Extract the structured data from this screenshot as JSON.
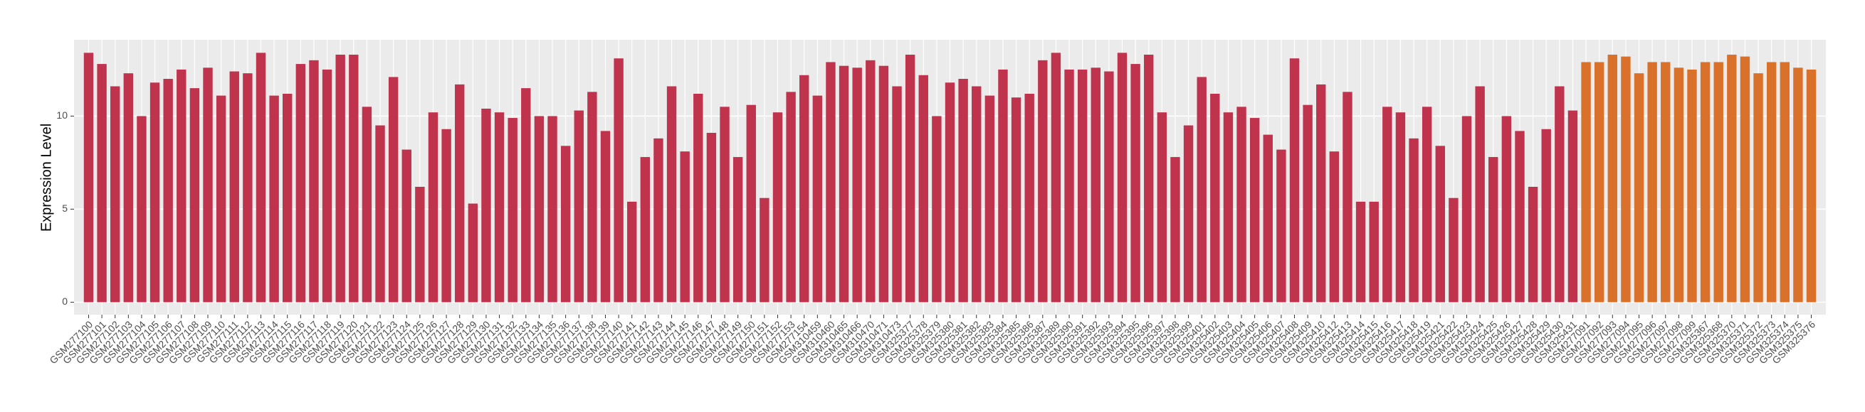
{
  "chart_data": {
    "type": "bar",
    "y_label": "Expression Level",
    "categories": [
      "GSM277100",
      "GSM277101",
      "GSM277102",
      "GSM277103",
      "GSM277104",
      "GSM277105",
      "GSM277106",
      "GSM277107",
      "GSM277108",
      "GSM277109",
      "GSM277110",
      "GSM277111",
      "GSM277112",
      "GSM277113",
      "GSM277114",
      "GSM277115",
      "GSM277116",
      "GSM277117",
      "GSM277118",
      "GSM277119",
      "GSM277120",
      "GSM277121",
      "GSM277122",
      "GSM277123",
      "GSM277124",
      "GSM277125",
      "GSM277126",
      "GSM277127",
      "GSM277128",
      "GSM277129",
      "GSM277130",
      "GSM277131",
      "GSM277132",
      "GSM277133",
      "GSM277134",
      "GSM277135",
      "GSM277136",
      "GSM277137",
      "GSM277138",
      "GSM277139",
      "GSM277140",
      "GSM277141",
      "GSM277142",
      "GSM277143",
      "GSM277144",
      "GSM277145",
      "GSM277146",
      "GSM277147",
      "GSM277148",
      "GSM277149",
      "GSM277150",
      "GSM277151",
      "GSM277152",
      "GSM277153",
      "GSM277154",
      "GSM310459",
      "GSM310460",
      "GSM310465",
      "GSM310466",
      "GSM310470",
      "GSM310471",
      "GSM310473",
      "GSM325377",
      "GSM325378",
      "GSM325379",
      "GSM325380",
      "GSM325381",
      "GSM325382",
      "GSM325383",
      "GSM325384",
      "GSM325385",
      "GSM325386",
      "GSM325387",
      "GSM325389",
      "GSM325390",
      "GSM325391",
      "GSM325392",
      "GSM325393",
      "GSM325394",
      "GSM325395",
      "GSM325396",
      "GSM325397",
      "GSM325398",
      "GSM325399",
      "GSM325401",
      "GSM325402",
      "GSM325403",
      "GSM325404",
      "GSM325405",
      "GSM325406",
      "GSM325407",
      "GSM325408",
      "GSM325409",
      "GSM325410",
      "GSM325412",
      "GSM325413",
      "GSM325414",
      "GSM325415",
      "GSM325416",
      "GSM325417",
      "GSM325418",
      "GSM325419",
      "GSM325421",
      "GSM325422",
      "GSM325423",
      "GSM325424",
      "GSM325425",
      "GSM325426",
      "GSM325427",
      "GSM325428",
      "GSM325429",
      "GSM325430",
      "GSM325431",
      "GSM277091",
      "GSM277092",
      "GSM277093",
      "GSM277094",
      "GSM277095",
      "GSM277096",
      "GSM277097",
      "GSM277098",
      "GSM277099",
      "GSM325367",
      "GSM325368",
      "GSM325370",
      "GSM325371",
      "GSM325372",
      "GSM325373",
      "GSM325374",
      "GSM325375",
      "GSM325376"
    ],
    "series": [
      {
        "color": "#c0334d",
        "values": [
          13.4,
          12.8,
          11.6,
          12.3,
          10.0,
          11.8,
          12.0,
          12.5,
          11.5,
          12.6,
          11.1,
          12.4,
          12.3,
          13.4,
          11.1,
          11.2,
          12.8,
          13.0,
          12.5,
          13.3,
          13.3,
          10.5,
          9.5,
          12.1,
          8.2,
          6.2,
          10.2,
          9.3,
          11.7,
          5.3,
          10.4,
          10.2,
          9.9,
          11.5,
          10.0,
          10.0,
          8.4,
          10.3,
          11.3,
          9.2,
          13.1,
          5.4,
          7.8,
          8.8,
          11.6,
          8.1,
          11.2,
          9.1,
          10.5,
          7.8,
          10.6,
          5.6,
          10.2,
          11.3,
          12.2,
          11.1,
          12.9,
          12.7,
          12.6,
          13.0,
          12.7,
          11.6,
          13.3,
          12.2,
          10.0,
          11.8,
          12.0,
          11.6,
          11.1,
          12.5,
          11.0,
          11.2,
          13.0,
          13.4,
          12.5,
          12.5,
          12.6,
          12.4,
          13.4,
          12.8,
          13.3,
          10.2,
          7.8,
          9.5,
          12.1,
          11.2,
          10.2,
          10.5,
          9.9,
          9.0,
          8.2,
          13.1,
          10.6,
          11.7,
          8.1,
          11.3,
          5.4,
          5.4,
          10.5,
          10.2,
          8.8,
          10.5,
          8.4,
          5.6,
          10.0,
          11.6,
          7.8,
          10.0,
          9.2,
          6.2,
          9.3,
          11.6,
          10.3,
          null,
          null,
          null,
          null,
          null,
          null,
          null,
          null,
          null,
          null,
          null,
          null,
          null,
          null,
          null,
          null,
          null,
          null
        ]
      },
      {
        "color": "#d9712a",
        "values": [
          null,
          null,
          null,
          null,
          null,
          null,
          null,
          null,
          null,
          null,
          null,
          null,
          null,
          null,
          null,
          null,
          null,
          null,
          null,
          null,
          null,
          null,
          null,
          null,
          null,
          null,
          null,
          null,
          null,
          null,
          null,
          null,
          null,
          null,
          null,
          null,
          null,
          null,
          null,
          null,
          null,
          null,
          null,
          null,
          null,
          null,
          null,
          null,
          null,
          null,
          null,
          null,
          null,
          null,
          null,
          null,
          null,
          null,
          null,
          null,
          null,
          null,
          null,
          null,
          null,
          null,
          null,
          null,
          null,
          null,
          null,
          null,
          null,
          null,
          null,
          null,
          null,
          null,
          null,
          null,
          null,
          null,
          null,
          null,
          null,
          null,
          null,
          null,
          null,
          null,
          null,
          null,
          null,
          null,
          null,
          null,
          null,
          null,
          null,
          null,
          null,
          null,
          null,
          null,
          null,
          null,
          null,
          null,
          null,
          null,
          null,
          null,
          null,
          12.9,
          12.9,
          13.3,
          13.2,
          12.3,
          12.9,
          12.9,
          12.6,
          12.5,
          12.9,
          12.9,
          13.3,
          13.2,
          12.3,
          12.9,
          12.9,
          12.6,
          12.5
        ]
      }
    ],
    "ylim": [
      -0.67,
      14.1
    ],
    "yticks": [
      0,
      5,
      10
    ],
    "grid": true
  }
}
